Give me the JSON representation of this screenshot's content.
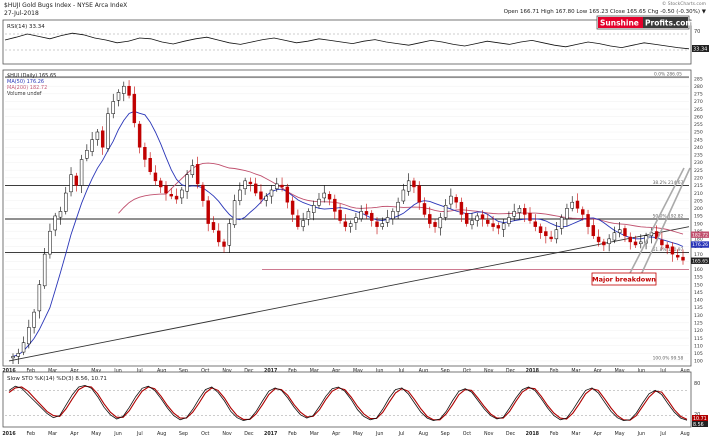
{
  "header": {
    "title": "$HUJI Gold Bugs Index - NYSE Arca IndeX",
    "date": "27-Jul-2018",
    "watermark": "© StockCharts.com",
    "ohlc": "Open 166.71  High 167.80  Low 165.23  Close 165.65  Chg -0.50 (-0.30%) ▼"
  },
  "brand": {
    "name_left": "Sunshine",
    "name_right": "Profits.com",
    "color_left": "#e4002b",
    "color_right": "#3a3a3a"
  },
  "annotation": {
    "text": "Major breakdown",
    "color": "#c00000"
  },
  "colors": {
    "candle_up": "#000000",
    "candle_down": "#c00000",
    "ma50": "#2a36b8",
    "ma200": "#c0506e",
    "stoch_k": "#111111",
    "stoch_d": "#b00000",
    "horizontal_lines": "#222222",
    "fib_lines": "#aaaaaa"
  },
  "chart_data": [
    {
      "type": "line",
      "name": "rsi",
      "title": "RSI(14) 33.34",
      "ylim": [
        0,
        100
      ],
      "levels": [
        30,
        70
      ],
      "tick_labels": [
        "30",
        "70"
      ],
      "last_value_label": "33.34",
      "series": [
        {
          "name": "RSI(14)",
          "values": [
            55,
            62,
            70,
            64,
            58,
            66,
            72,
            68,
            60,
            55,
            48,
            52,
            60,
            58,
            50,
            45,
            52,
            58,
            62,
            55,
            48,
            44,
            50,
            56,
            60,
            54,
            48,
            52,
            58,
            54,
            50,
            46,
            52,
            56,
            50,
            46,
            42,
            48,
            54,
            50,
            44,
            40,
            46,
            52,
            48,
            44,
            50,
            54,
            48,
            42,
            38,
            44,
            50,
            46,
            40,
            36,
            42,
            48,
            44,
            40,
            36,
            33
          ]
        }
      ]
    },
    {
      "type": "candlestick",
      "name": "price",
      "legend": [
        "$HUI (Daily) 165.65",
        "MA(50) 176.26",
        "MA(200) 182.72",
        "Volume undef"
      ],
      "ylim": [
        98,
        288
      ],
      "y_ticks": [
        100,
        105,
        110,
        115,
        120,
        125,
        130,
        135,
        140,
        145,
        150,
        155,
        160,
        165,
        170,
        175,
        180,
        185,
        190,
        195,
        200,
        205,
        210,
        215,
        220,
        225,
        230,
        235,
        240,
        245,
        250,
        255,
        260,
        265,
        270,
        275,
        280,
        285
      ],
      "right_labels": [
        "176.26",
        "182.72",
        "165.65"
      ],
      "horizontal_levels": [
        {
          "value": 286,
          "label": "0.0% 286.05"
        },
        {
          "value": 215,
          "label": "38.2% 214.67"
        },
        {
          "value": 193,
          "label": "50.0% 192.82"
        },
        {
          "value": 171,
          "label": "61.8% 170.97"
        },
        {
          "value": 160,
          "label": ""
        }
      ],
      "fib_labels": [
        {
          "value": 286,
          "text": "0.0% 286.05"
        },
        {
          "value": 215,
          "text": "38.2% 214.67"
        },
        {
          "value": 193,
          "text": "50.0% 192.82"
        },
        {
          "value": 171,
          "text": "61.8% 170.97"
        },
        {
          "value": 100,
          "text": "100.0% 99.58"
        }
      ],
      "trendline": {
        "from": [
          "2016-01",
          100
        ],
        "to": [
          "2018-08",
          188
        ]
      },
      "months": [
        "2016",
        "Feb",
        "Mar",
        "Apr",
        "May",
        "Jun",
        "Jul",
        "Aug",
        "Sep",
        "Oct",
        "Nov",
        "Dec",
        "2017",
        "Feb",
        "Mar",
        "Apr",
        "May",
        "Jun",
        "Jul",
        "Aug",
        "Sep",
        "Oct",
        "Nov",
        "Dec",
        "2018",
        "Feb",
        "Mar",
        "Apr",
        "May",
        "Jun",
        "Jul",
        "Aug"
      ],
      "closes": [
        103,
        105,
        112,
        122,
        132,
        150,
        170,
        185,
        195,
        198,
        210,
        222,
        215,
        232,
        238,
        245,
        250,
        240,
        262,
        270,
        276,
        280,
        274,
        256,
        240,
        232,
        224,
        218,
        214,
        210,
        208,
        206,
        212,
        222,
        228,
        216,
        205,
        190,
        186,
        178,
        175,
        190,
        205,
        212,
        218,
        216,
        210,
        206,
        208,
        212,
        216,
        214,
        204,
        196,
        188,
        192,
        198,
        202,
        206,
        210,
        206,
        198,
        192,
        188,
        190,
        194,
        198,
        196,
        192,
        188,
        190,
        194,
        198,
        204,
        212,
        218,
        214,
        204,
        196,
        190,
        188,
        194,
        202,
        208,
        204,
        196,
        190,
        192,
        195,
        193,
        190,
        188,
        187,
        190,
        194,
        198,
        200,
        196,
        192,
        188,
        184,
        182,
        180,
        186,
        194,
        200,
        204,
        200,
        196,
        188,
        182,
        178,
        176,
        180,
        184,
        186,
        182,
        178,
        176,
        178,
        182,
        184,
        180,
        176,
        174,
        170,
        168,
        166
      ]
    },
    {
      "type": "line",
      "name": "stochastic",
      "title": "Slow STO %K(14) %D(3) 8.56, 10.71",
      "ylim": [
        0,
        100
      ],
      "levels": [
        20,
        80
      ],
      "tick_labels": [
        "20",
        "80"
      ],
      "last_value_labels": [
        "10.71",
        "8.56"
      ],
      "series": [
        {
          "name": "%K(14)",
          "values": [
            80,
            90,
            85,
            70,
            55,
            40,
            25,
            15,
            20,
            45,
            70,
            88,
            92,
            85,
            65,
            40,
            22,
            12,
            18,
            40,
            65,
            85,
            90,
            80,
            60,
            38,
            20,
            10,
            15,
            35,
            60,
            82,
            88,
            75,
            55,
            30,
            15,
            8,
            12,
            30,
            55,
            78,
            86,
            80,
            62,
            40,
            22,
            14,
            20,
            42,
            66,
            84,
            88,
            78,
            58,
            34,
            18,
            10,
            14,
            36,
            62,
            82,
            86,
            72,
            50,
            28,
            14,
            8,
            12,
            30,
            56,
            78,
            84,
            76,
            56,
            36,
            20,
            12,
            16,
            38,
            62,
            82,
            88,
            80,
            60,
            38,
            20,
            10,
            14,
            34,
            58,
            80,
            86,
            74,
            52,
            30,
            15,
            8,
            10,
            26,
            50,
            72,
            80,
            70,
            48,
            28,
            14,
            9
          ]
        },
        {
          "name": "%D(3)",
          "values": [
            75,
            86,
            88,
            78,
            62,
            46,
            30,
            20,
            18,
            36,
            60,
            82,
            90,
            88,
            72,
            48,
            28,
            16,
            16,
            32,
            56,
            78,
            88,
            84,
            66,
            44,
            26,
            14,
            14,
            28,
            50,
            74,
            86,
            80,
            62,
            38,
            20,
            11,
            11,
            24,
            46,
            70,
            84,
            82,
            68,
            46,
            28,
            17,
            18,
            34,
            58,
            78,
            86,
            82,
            64,
            42,
            24,
            13,
            13,
            28,
            52,
            74,
            84,
            78,
            58,
            36,
            18,
            10,
            10,
            24,
            46,
            70,
            82,
            80,
            62,
            42,
            24,
            14,
            14,
            30,
            54,
            76,
            86,
            84,
            66,
            44,
            26,
            14,
            12,
            26,
            48,
            72,
            84,
            80,
            60,
            38,
            20,
            10,
            9,
            20,
            42,
            64,
            78,
            76,
            56,
            34,
            18,
            11
          ]
        }
      ]
    }
  ]
}
